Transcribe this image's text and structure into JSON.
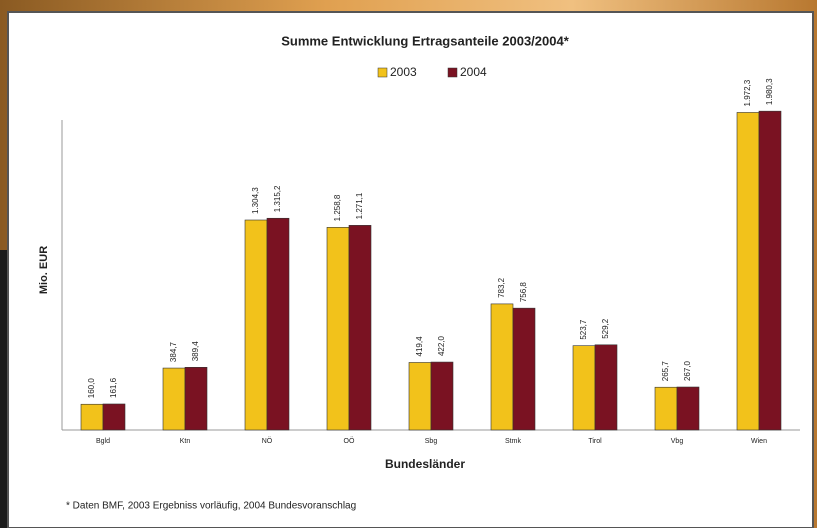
{
  "chart_data": {
    "type": "bar",
    "title": "Summe Entwicklung Ertragsanteile 2003/2004*",
    "y_label": "Mio. EUR",
    "x_label": "Bundesländer",
    "footnote": "* Daten BMF, 2003 Ergebniss vorläufig, 2004 Bundesvoranschlag",
    "categories": [
      "Bgld",
      "Ktn",
      "NÖ",
      "OÖ",
      "Sbg",
      "Stmk",
      "Tirol",
      "Vbg",
      "Wien"
    ],
    "series": [
      {
        "name": "2003",
        "color": "#f2c21b",
        "values": [
          160.0,
          384.7,
          1304.3,
          1258.8,
          419.4,
          783.2,
          523.7,
          265.7,
          1972.3
        ],
        "value_labels": [
          "160,0",
          "384,7",
          "1.304,3",
          "1.258,8",
          "419,4",
          "783,2",
          "523,7",
          "265,7",
          "1.972,3"
        ]
      },
      {
        "name": "2004",
        "color": "#7a1222",
        "values": [
          161.6,
          389.4,
          1315.2,
          1271.1,
          422.0,
          756.8,
          529.2,
          267.0,
          1980.3
        ],
        "value_labels": [
          "161,6",
          "389,4",
          "1.315,2",
          "1.271,1",
          "422,0",
          "756,8",
          "529,2",
          "267,0",
          "1.980,3"
        ]
      }
    ],
    "ylim": [
      0,
      2000
    ],
    "legend": "top"
  }
}
